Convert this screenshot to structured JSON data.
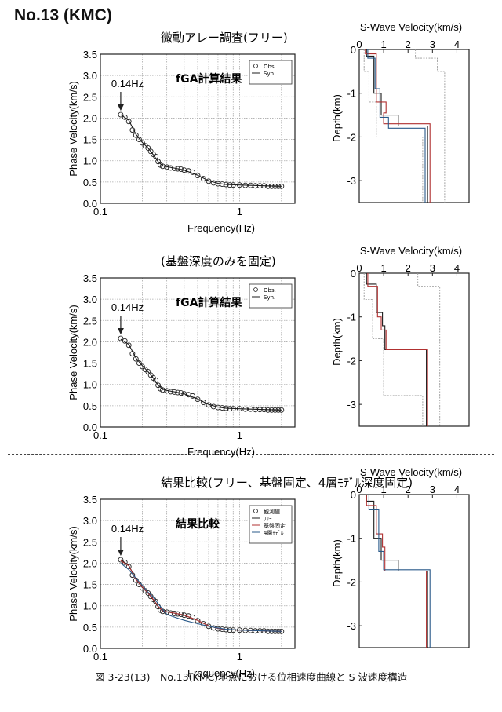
{
  "header": "No.13 (KMC)",
  "caption": "図 3-23(13)　No.13(KMC)地点における位相速度曲線と S 波速度構造",
  "common": {
    "marker_label": "0.14Hz",
    "pv_ylabel": "Phase Velocity(km/s)",
    "pv_xlabel": "Frequency(Hz)",
    "pv_yticks": [
      "0.0",
      "0.5",
      "1.0",
      "1.5",
      "2.0",
      "2.5",
      "3.0",
      "3.5"
    ],
    "pv_xticks": [
      "0.1",
      "1"
    ],
    "vs_title": "S-Wave Velocity(km/s)",
    "vs_ylabel": "Depth(km)",
    "vs_xticks": [
      "0",
      "1",
      "2",
      "3",
      "4"
    ],
    "vs_yticks": [
      "0",
      "-1",
      "-2",
      "-3"
    ]
  },
  "panels": [
    {
      "title": "微動アレー調査(フリー)",
      "inset": "fGA計算結果",
      "legend": [
        "Obs.",
        "Syn."
      ]
    },
    {
      "title": "(基盤深度のみを固定)",
      "inset": "fGA計算結果",
      "legend": [
        "Obs.",
        "Syn."
      ]
    },
    {
      "title": "結果比較(フリー、基盤固定、4層ﾓﾃﾞﾙ深度固定)",
      "inset": "結果比較",
      "legend": [
        "観測値",
        "ﾌﾘｰ",
        "基盤固定",
        "4層ﾓﾃﾞﾙ"
      ]
    }
  ],
  "chart_data": [
    {
      "type": "scatter",
      "title": "微動アレー調査(フリー)",
      "xlabel": "Frequency(Hz)",
      "ylabel": "Phase Velocity(km/s)",
      "xscale": "log",
      "xlim": [
        0.1,
        2.5
      ],
      "ylim": [
        0,
        3.5
      ],
      "grid": true,
      "legend_position": "top-right",
      "annotation": {
        "text": "0.14Hz",
        "x": 0.14
      },
      "series": [
        {
          "name": "Obs.",
          "x": [
            0.14,
            0.15,
            0.16,
            0.17,
            0.18,
            0.19,
            0.2,
            0.21,
            0.22,
            0.23,
            0.24,
            0.25,
            0.26,
            0.27,
            0.28,
            0.3,
            0.32,
            0.34,
            0.36,
            0.38,
            0.4,
            0.43,
            0.46,
            0.5,
            0.55,
            0.6,
            0.65,
            0.7,
            0.75,
            0.8,
            0.85,
            0.9,
            1.0,
            1.1,
            1.2,
            1.3,
            1.4,
            1.5,
            1.6,
            1.7,
            1.8,
            1.9,
            2.0
          ],
          "y": [
            2.08,
            2.02,
            1.92,
            1.72,
            1.6,
            1.5,
            1.42,
            1.35,
            1.3,
            1.22,
            1.15,
            1.1,
            0.98,
            0.9,
            0.87,
            0.85,
            0.83,
            0.82,
            0.81,
            0.8,
            0.78,
            0.76,
            0.73,
            0.65,
            0.58,
            0.52,
            0.48,
            0.46,
            0.45,
            0.44,
            0.43,
            0.43,
            0.43,
            0.42,
            0.42,
            0.41,
            0.41,
            0.41,
            0.4,
            0.4,
            0.4,
            0.4,
            0.4
          ]
        },
        {
          "name": "Syn.",
          "x": [
            0.14,
            0.16,
            0.18,
            0.2,
            0.22,
            0.24,
            0.26,
            0.28,
            0.3,
            0.35,
            0.4,
            0.5,
            0.6,
            0.7,
            0.8,
            1.0,
            1.2,
            1.5,
            2.0
          ],
          "y": [
            2.08,
            1.95,
            1.62,
            1.43,
            1.3,
            1.14,
            0.98,
            0.88,
            0.86,
            0.82,
            0.78,
            0.66,
            0.53,
            0.47,
            0.44,
            0.43,
            0.42,
            0.41,
            0.4
          ]
        }
      ]
    },
    {
      "type": "line",
      "title": "S-Wave Velocity(km/s)",
      "xlabel": "",
      "ylabel": "Depth(km)",
      "xlim": [
        0,
        4.5
      ],
      "ylim": [
        -3.5,
        0
      ],
      "grid": false,
      "series": [
        {
          "x": [
            0.3,
            0.3,
            0.6,
            0.6,
            0.9,
            0.9,
            1.6,
            1.6,
            2.8,
            2.8
          ],
          "y": [
            0,
            -0.15,
            -0.15,
            -1.0,
            -1.0,
            -1.5,
            -1.5,
            -1.75,
            -1.75,
            -3.5
          ]
        },
        {
          "x": [
            0.25,
            0.25,
            0.7,
            0.7,
            1.1,
            1.1,
            1.0,
            1.0,
            2.9,
            2.9
          ],
          "y": [
            0,
            -0.1,
            -0.1,
            -1.2,
            -1.2,
            -1.45,
            -1.45,
            -1.7,
            -1.7,
            -3.5
          ]
        },
        {
          "x": [
            0.35,
            0.35,
            0.65,
            0.65,
            0.85,
            0.85,
            1.2,
            1.2,
            2.7,
            2.7
          ],
          "y": [
            0,
            -0.2,
            -0.2,
            -0.9,
            -0.9,
            -1.55,
            -1.55,
            -1.8,
            -1.8,
            -3.5
          ]
        },
        {
          "x": [
            2.3,
            2.3,
            3.2,
            3.2,
            3.5,
            3.5
          ],
          "y": [
            0,
            -0.2,
            -0.2,
            -0.5,
            -0.5,
            -3.5
          ]
        },
        {
          "x": [
            0.2,
            0.2,
            0.4,
            0.4,
            0.7,
            0.7,
            2.6,
            2.6
          ],
          "y": [
            0,
            -0.5,
            -0.5,
            -1.2,
            -1.2,
            -2.0,
            -2.0,
            -3.5
          ]
        }
      ]
    },
    {
      "type": "scatter",
      "title": "(基盤深度のみを固定)",
      "xlabel": "Frequency(Hz)",
      "ylabel": "Phase Velocity(km/s)",
      "xscale": "log",
      "xlim": [
        0.1,
        2.5
      ],
      "ylim": [
        0,
        3.5
      ],
      "grid": true,
      "legend_position": "top-right",
      "annotation": {
        "text": "0.14Hz",
        "x": 0.14
      },
      "series": [
        {
          "name": "Obs.",
          "x": [
            0.14,
            0.15,
            0.16,
            0.17,
            0.18,
            0.19,
            0.2,
            0.21,
            0.22,
            0.23,
            0.24,
            0.25,
            0.26,
            0.27,
            0.28,
            0.3,
            0.32,
            0.34,
            0.36,
            0.38,
            0.4,
            0.43,
            0.46,
            0.5,
            0.55,
            0.6,
            0.65,
            0.7,
            0.75,
            0.8,
            0.85,
            0.9,
            1.0,
            1.1,
            1.2,
            1.3,
            1.4,
            1.5,
            1.6,
            1.7,
            1.8,
            1.9,
            2.0
          ],
          "y": [
            2.08,
            2.02,
            1.92,
            1.72,
            1.6,
            1.5,
            1.42,
            1.35,
            1.3,
            1.22,
            1.15,
            1.1,
            0.98,
            0.9,
            0.87,
            0.85,
            0.83,
            0.82,
            0.81,
            0.8,
            0.78,
            0.76,
            0.73,
            0.65,
            0.58,
            0.52,
            0.48,
            0.46,
            0.45,
            0.44,
            0.43,
            0.43,
            0.43,
            0.42,
            0.42,
            0.41,
            0.41,
            0.41,
            0.4,
            0.4,
            0.4,
            0.4,
            0.4
          ]
        },
        {
          "name": "Syn.",
          "x": [
            0.14,
            0.16,
            0.18,
            0.2,
            0.22,
            0.24,
            0.26,
            0.28,
            0.3,
            0.35,
            0.4,
            0.5,
            0.6,
            0.7,
            0.8,
            1.0,
            1.2,
            1.5,
            2.0
          ],
          "y": [
            2.06,
            1.94,
            1.62,
            1.44,
            1.3,
            1.15,
            0.99,
            0.89,
            0.86,
            0.82,
            0.78,
            0.66,
            0.53,
            0.47,
            0.44,
            0.43,
            0.42,
            0.41,
            0.4
          ]
        }
      ]
    },
    {
      "type": "line",
      "title": "S-Wave Velocity(km/s)",
      "xlabel": "",
      "ylabel": "Depth(km)",
      "xlim": [
        0,
        4.5
      ],
      "ylim": [
        -3.5,
        0
      ],
      "grid": false,
      "series": [
        {
          "x": [
            0.3,
            0.3,
            0.7,
            0.7,
            0.95,
            0.95,
            1.05,
            1.05,
            2.75,
            2.75
          ],
          "y": [
            0,
            -0.25,
            -0.25,
            -0.9,
            -0.9,
            -1.2,
            -1.2,
            -1.75,
            -1.75,
            -3.5
          ]
        },
        {
          "x": [
            0.35,
            0.35,
            0.75,
            0.75,
            0.9,
            0.9,
            1.1,
            1.1,
            2.8,
            2.8
          ],
          "y": [
            0,
            -0.3,
            -0.3,
            -1.0,
            -1.0,
            -1.3,
            -1.3,
            -1.75,
            -1.75,
            -3.5
          ]
        },
        {
          "x": [
            2.4,
            2.4,
            3.3,
            3.3
          ],
          "y": [
            0,
            -0.3,
            -0.3,
            -3.5
          ]
        },
        {
          "x": [
            0.2,
            0.2,
            0.55,
            0.55,
            1.0,
            1.0,
            2.6,
            2.6
          ],
          "y": [
            0,
            -0.6,
            -0.6,
            -1.5,
            -1.5,
            -2.8,
            -2.8,
            -3.5
          ]
        }
      ]
    },
    {
      "type": "scatter",
      "title": "結果比較(フリー、基盤固定、4層ﾓﾃﾞﾙ深度固定)",
      "xlabel": "Frequency(Hz)",
      "ylabel": "Phase Velocity(km/s)",
      "xscale": "log",
      "xlim": [
        0.1,
        2.5
      ],
      "ylim": [
        0,
        3.5
      ],
      "grid": true,
      "legend_position": "top-right",
      "annotation": {
        "text": "0.14Hz",
        "x": 0.14
      },
      "series": [
        {
          "name": "観測値",
          "x": [
            0.14,
            0.15,
            0.16,
            0.17,
            0.18,
            0.19,
            0.2,
            0.21,
            0.22,
            0.23,
            0.24,
            0.25,
            0.26,
            0.27,
            0.28,
            0.3,
            0.32,
            0.34,
            0.36,
            0.38,
            0.4,
            0.43,
            0.46,
            0.5,
            0.55,
            0.6,
            0.65,
            0.7,
            0.75,
            0.8,
            0.85,
            0.9,
            1.0,
            1.1,
            1.2,
            1.3,
            1.4,
            1.5,
            1.6,
            1.7,
            1.8,
            1.9,
            2.0
          ],
          "y": [
            2.08,
            2.02,
            1.92,
            1.72,
            1.6,
            1.5,
            1.42,
            1.35,
            1.3,
            1.22,
            1.15,
            1.1,
            0.98,
            0.9,
            0.87,
            0.85,
            0.83,
            0.82,
            0.81,
            0.8,
            0.78,
            0.76,
            0.73,
            0.65,
            0.58,
            0.52,
            0.48,
            0.46,
            0.45,
            0.44,
            0.43,
            0.43,
            0.43,
            0.42,
            0.42,
            0.41,
            0.41,
            0.41,
            0.4,
            0.4,
            0.4,
            0.4,
            0.4
          ]
        },
        {
          "name": "ﾌﾘｰ",
          "x": [
            0.14,
            0.16,
            0.18,
            0.2,
            0.22,
            0.24,
            0.26,
            0.28,
            0.3,
            0.35,
            0.4,
            0.5,
            0.6,
            0.7,
            0.8,
            1.0,
            1.2,
            1.5,
            2.0
          ],
          "y": [
            2.08,
            1.95,
            1.62,
            1.43,
            1.3,
            1.14,
            0.98,
            0.88,
            0.86,
            0.82,
            0.78,
            0.66,
            0.53,
            0.47,
            0.44,
            0.43,
            0.42,
            0.41,
            0.4
          ]
        },
        {
          "name": "基盤固定",
          "x": [
            0.14,
            0.16,
            0.18,
            0.2,
            0.22,
            0.24,
            0.26,
            0.28,
            0.3,
            0.35,
            0.4,
            0.5,
            0.6,
            0.7,
            0.8,
            1.0,
            1.2,
            1.5,
            2.0
          ],
          "y": [
            2.06,
            1.94,
            1.62,
            1.44,
            1.3,
            1.15,
            0.99,
            0.89,
            0.86,
            0.82,
            0.78,
            0.66,
            0.53,
            0.47,
            0.44,
            0.43,
            0.42,
            0.41,
            0.4
          ]
        },
        {
          "name": "4層ﾓﾃﾞﾙ",
          "x": [
            0.14,
            0.16,
            0.18,
            0.2,
            0.22,
            0.24,
            0.26,
            0.28,
            0.3,
            0.35,
            0.4,
            0.5,
            0.6,
            0.7,
            0.8,
            1.0,
            1.2,
            1.5,
            2.0
          ],
          "y": [
            2.0,
            1.85,
            1.65,
            1.48,
            1.32,
            1.2,
            1.05,
            0.92,
            0.8,
            0.72,
            0.66,
            0.58,
            0.52,
            0.48,
            0.45,
            0.43,
            0.42,
            0.41,
            0.4
          ]
        }
      ]
    },
    {
      "type": "line",
      "title": "S-Wave Velocity(km/s)",
      "xlabel": "",
      "ylabel": "Depth(km)",
      "xlim": [
        0,
        4.5
      ],
      "ylim": [
        -3.5,
        0
      ],
      "grid": false,
      "series": [
        {
          "x": [
            0.3,
            0.3,
            0.6,
            0.6,
            0.9,
            0.9,
            1.6,
            1.6,
            2.8,
            2.8
          ],
          "y": [
            0,
            -0.15,
            -0.15,
            -1.0,
            -1.0,
            -1.5,
            -1.5,
            -1.75,
            -1.75,
            -3.5
          ]
        },
        {
          "x": [
            0.3,
            0.3,
            0.7,
            0.7,
            0.95,
            0.95,
            1.05,
            1.05,
            2.75,
            2.75
          ],
          "y": [
            0,
            -0.25,
            -0.25,
            -0.9,
            -0.9,
            -1.2,
            -1.2,
            -1.75,
            -1.75,
            -3.5
          ]
        },
        {
          "x": [
            0.4,
            0.4,
            0.8,
            0.8,
            1.0,
            1.0,
            2.9,
            2.9
          ],
          "y": [
            0,
            -0.35,
            -0.35,
            -1.3,
            -1.3,
            -1.72,
            -1.72,
            -3.5
          ]
        }
      ]
    }
  ]
}
